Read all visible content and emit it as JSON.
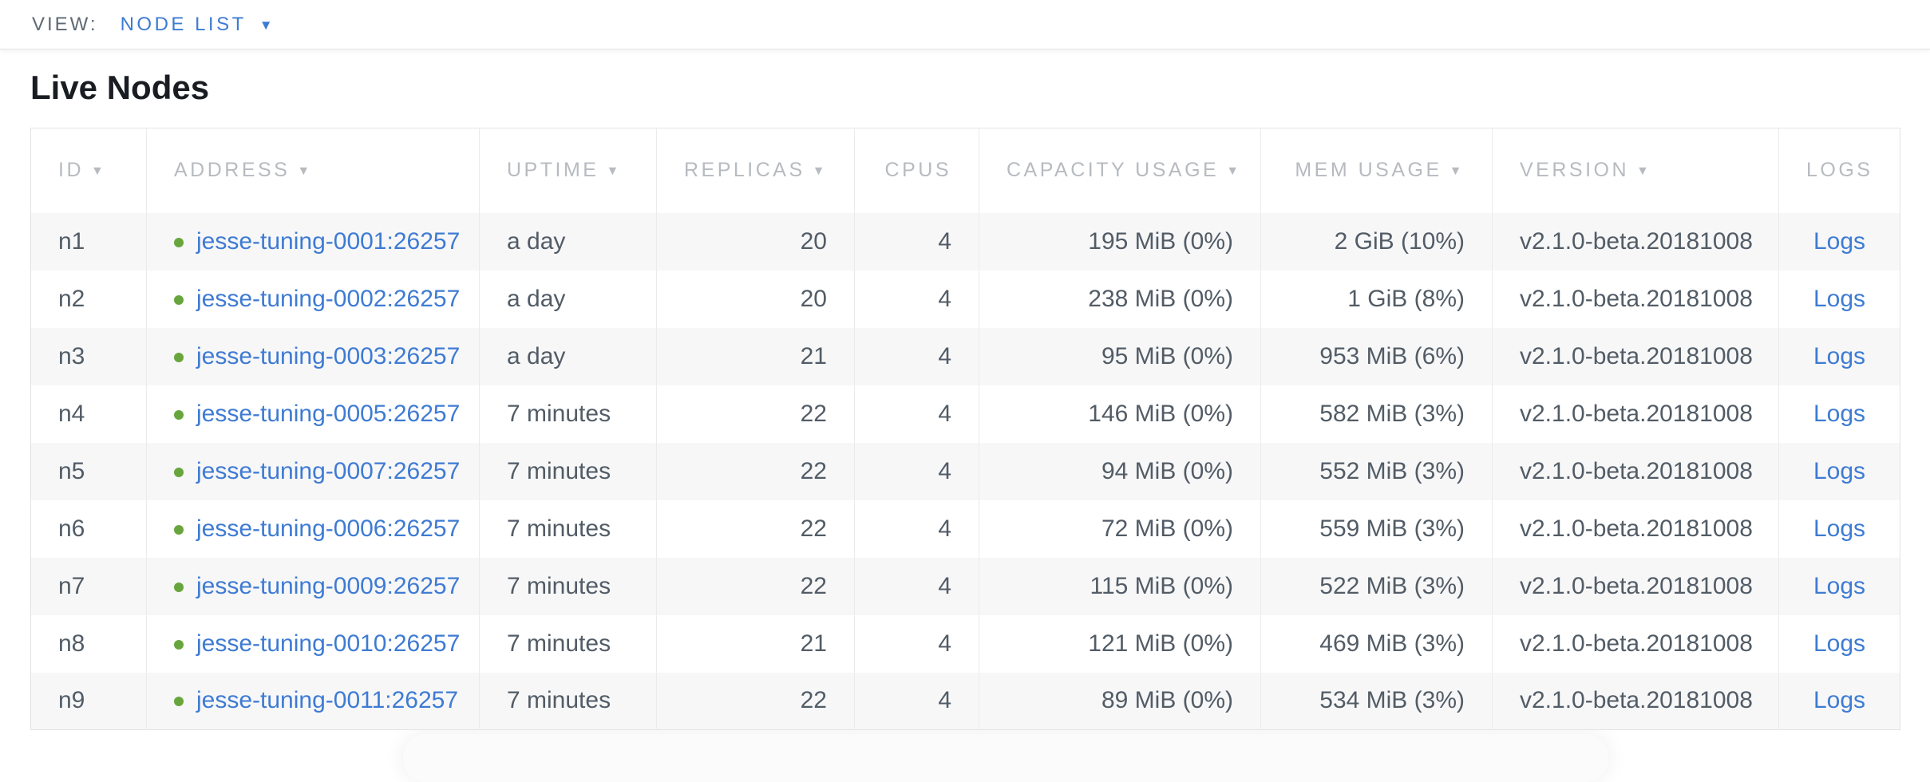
{
  "view_bar": {
    "label": "VIEW:",
    "selected": "NODE LIST",
    "caret_icon": "caret-down-icon"
  },
  "page": {
    "title": "Live Nodes"
  },
  "colors": {
    "link_blue": "#3e7bd3",
    "live_green": "#68a63d",
    "header_gray": "#b7bbc0",
    "cell_text": "#525c66",
    "row_stripe": "#f7f7f8"
  },
  "table": {
    "columns": [
      {
        "key": "id",
        "label": "ID",
        "sortable": true,
        "align": "left"
      },
      {
        "key": "address",
        "label": "ADDRESS",
        "sortable": true,
        "align": "left"
      },
      {
        "key": "uptime",
        "label": "UPTIME",
        "sortable": true,
        "align": "left"
      },
      {
        "key": "replicas",
        "label": "REPLICAS",
        "sortable": true,
        "align": "right"
      },
      {
        "key": "cpus",
        "label": "CPUS",
        "sortable": false,
        "align": "right"
      },
      {
        "key": "capacity_usage",
        "label": "CAPACITY USAGE",
        "sortable": true,
        "align": "right"
      },
      {
        "key": "mem_usage",
        "label": "MEM USAGE",
        "sortable": true,
        "align": "right"
      },
      {
        "key": "version",
        "label": "VERSION",
        "sortable": true,
        "align": "left"
      },
      {
        "key": "logs",
        "label": "LOGS",
        "sortable": false,
        "align": "center"
      }
    ],
    "rows": [
      {
        "id": "n1",
        "status": "live",
        "address": "jesse-tuning-0001:26257",
        "uptime": "a day",
        "replicas": "20",
        "cpus": "4",
        "capacity_usage": "195 MiB (0%)",
        "mem_usage": "2 GiB (10%)",
        "version": "v2.1.0-beta.20181008",
        "logs": "Logs"
      },
      {
        "id": "n2",
        "status": "live",
        "address": "jesse-tuning-0002:26257",
        "uptime": "a day",
        "replicas": "20",
        "cpus": "4",
        "capacity_usage": "238 MiB (0%)",
        "mem_usage": "1 GiB (8%)",
        "version": "v2.1.0-beta.20181008",
        "logs": "Logs"
      },
      {
        "id": "n3",
        "status": "live",
        "address": "jesse-tuning-0003:26257",
        "uptime": "a day",
        "replicas": "21",
        "cpus": "4",
        "capacity_usage": "95 MiB (0%)",
        "mem_usage": "953 MiB (6%)",
        "version": "v2.1.0-beta.20181008",
        "logs": "Logs"
      },
      {
        "id": "n4",
        "status": "live",
        "address": "jesse-tuning-0005:26257",
        "uptime": "7 minutes",
        "replicas": "22",
        "cpus": "4",
        "capacity_usage": "146 MiB (0%)",
        "mem_usage": "582 MiB (3%)",
        "version": "v2.1.0-beta.20181008",
        "logs": "Logs"
      },
      {
        "id": "n5",
        "status": "live",
        "address": "jesse-tuning-0007:26257",
        "uptime": "7 minutes",
        "replicas": "22",
        "cpus": "4",
        "capacity_usage": "94 MiB (0%)",
        "mem_usage": "552 MiB (3%)",
        "version": "v2.1.0-beta.20181008",
        "logs": "Logs"
      },
      {
        "id": "n6",
        "status": "live",
        "address": "jesse-tuning-0006:26257",
        "uptime": "7 minutes",
        "replicas": "22",
        "cpus": "4",
        "capacity_usage": "72 MiB (0%)",
        "mem_usage": "559 MiB (3%)",
        "version": "v2.1.0-beta.20181008",
        "logs": "Logs"
      },
      {
        "id": "n7",
        "status": "live",
        "address": "jesse-tuning-0009:26257",
        "uptime": "7 minutes",
        "replicas": "22",
        "cpus": "4",
        "capacity_usage": "115 MiB (0%)",
        "mem_usage": "522 MiB (3%)",
        "version": "v2.1.0-beta.20181008",
        "logs": "Logs"
      },
      {
        "id": "n8",
        "status": "live",
        "address": "jesse-tuning-0010:26257",
        "uptime": "7 minutes",
        "replicas": "21",
        "cpus": "4",
        "capacity_usage": "121 MiB (0%)",
        "mem_usage": "469 MiB (3%)",
        "version": "v2.1.0-beta.20181008",
        "logs": "Logs"
      },
      {
        "id": "n9",
        "status": "live",
        "address": "jesse-tuning-0011:26257",
        "uptime": "7 minutes",
        "replicas": "22",
        "cpus": "4",
        "capacity_usage": "89 MiB (0%)",
        "mem_usage": "534 MiB (3%)",
        "version": "v2.1.0-beta.20181008",
        "logs": "Logs"
      }
    ]
  }
}
